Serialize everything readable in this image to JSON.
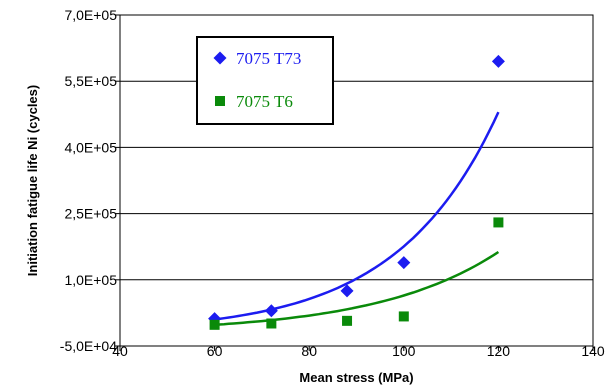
{
  "chart_data": {
    "type": "scatter",
    "title": "",
    "xlabel": "Mean stress (MPa)",
    "ylabel": "Initiation fatigue life Ni (cycles)",
    "xlim": [
      40,
      140
    ],
    "ylim": [
      -50000,
      700000
    ],
    "x_ticks": [
      40,
      60,
      80,
      100,
      120,
      140
    ],
    "y_ticks": [
      -50000,
      100000,
      250000,
      400000,
      550000,
      700000
    ],
    "x_tick_labels": [
      "40",
      "60",
      "80",
      "100",
      "120",
      "140"
    ],
    "y_tick_labels": [
      "-5,0E+04",
      "1,0E+05",
      "2,5E+05",
      "4,0E+05",
      "5,5E+05",
      "7,0E+05"
    ],
    "grid": {
      "horizontal": true,
      "vertical": false
    },
    "legend": {
      "position": "top-left"
    },
    "series": [
      {
        "name": "7075 T73",
        "marker": "diamond",
        "color": "#1c1cf0",
        "x": [
          60,
          72,
          88,
          100,
          120
        ],
        "y": [
          12000,
          30000,
          75000,
          139000,
          595000
        ],
        "trendline": {
          "type": "exponential",
          "color": "#1c1cf0",
          "x_range": [
            60,
            120
          ],
          "y_range": [
            10000,
            480000
          ]
        }
      },
      {
        "name": "7075 T6",
        "marker": "square",
        "color": "#0a8a0a",
        "x": [
          60,
          72,
          88,
          100,
          120
        ],
        "y": [
          -2000,
          1000,
          7000,
          17000,
          230000
        ],
        "trendline": {
          "type": "exponential",
          "color": "#0a8a0a",
          "x_range": [
            60,
            120
          ],
          "y_range": [
            -2000,
            163000
          ]
        }
      }
    ]
  }
}
